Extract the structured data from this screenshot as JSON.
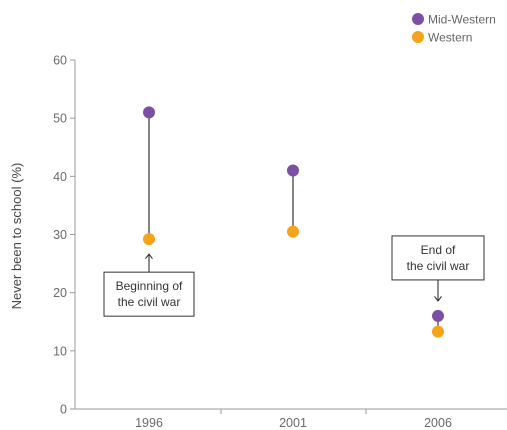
{
  "chart_data": {
    "type": "scatter",
    "subtype": "dumbbell",
    "title": "",
    "xlabel": "",
    "ylabel": "Never been to school (%)",
    "ylim": [
      0,
      60
    ],
    "yticks": [
      0,
      10,
      20,
      30,
      40,
      50,
      60
    ],
    "categories": [
      "1996",
      "2001",
      "2006"
    ],
    "series": [
      {
        "name": "Mid-Western",
        "color": "#7b4fa3",
        "values": [
          51,
          41,
          16
        ]
      },
      {
        "name": "Western",
        "color": "#f5a31a",
        "values": [
          29.2,
          30.5,
          13.3
        ]
      }
    ],
    "legend_position": "top-right",
    "grid": false,
    "annotations": [
      {
        "lines": [
          "Beginning of",
          "the civil war"
        ],
        "category": "1996",
        "points_to": "Western",
        "position": "below"
      },
      {
        "lines": [
          "End of",
          "the civil war"
        ],
        "category": "2006",
        "points_to": "Mid-Western",
        "position": "above"
      }
    ]
  }
}
